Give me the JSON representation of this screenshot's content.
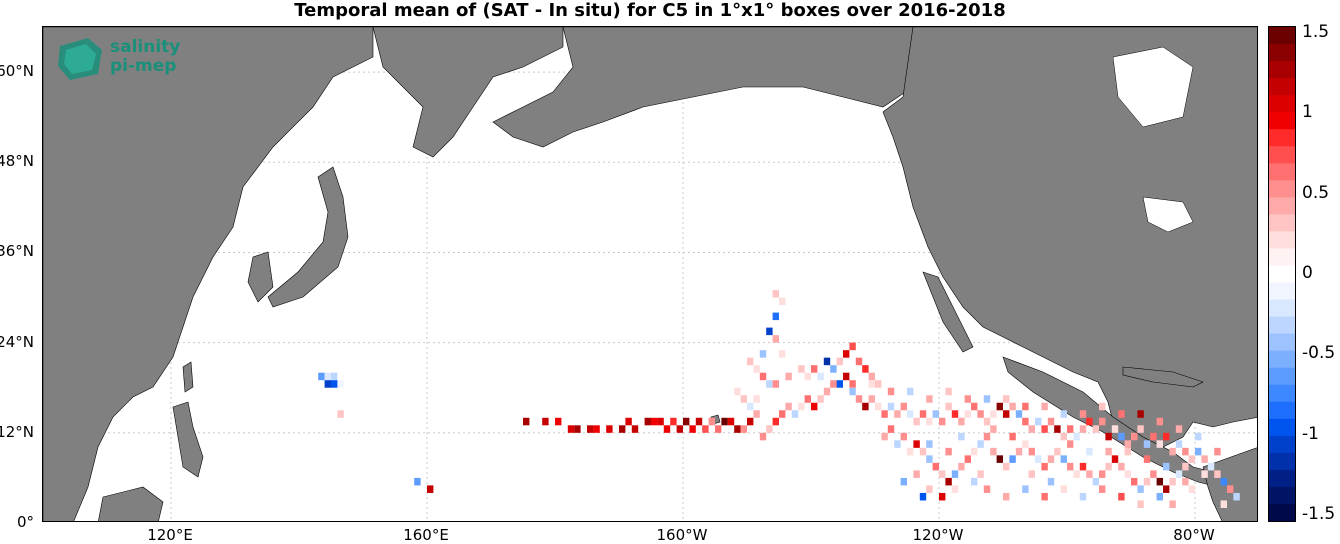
{
  "title": "Temporal mean of (SAT - In situ) for C5 in 1°x1° boxes over 2016-2018",
  "logo": {
    "line1": "salinity",
    "line2": "pi-mep"
  },
  "colors": {
    "land": "#808080",
    "ocean": "#ffffff",
    "grid": "#c8c8c8",
    "logo": "#1a8f7a"
  },
  "y_ticks": [
    {
      "value": 0,
      "label": "0°"
    },
    {
      "value": 12,
      "label": "12°N"
    },
    {
      "value": 24,
      "label": "24°N"
    },
    {
      "value": 36,
      "label": "36°N"
    },
    {
      "value": 48,
      "label": "48°N"
    },
    {
      "value": 60,
      "label": "60°N"
    }
  ],
  "x_ticks": [
    {
      "value": 120,
      "label": "120°E"
    },
    {
      "value": 160,
      "label": "160°E"
    },
    {
      "value": 200,
      "label": "160°W"
    },
    {
      "value": 240,
      "label": "120°W"
    },
    {
      "value": 280,
      "label": "80°W"
    }
  ],
  "colorbar": {
    "min": -1.5,
    "max": 1.5,
    "ticks": [
      {
        "value": 1.5,
        "label": "1.5"
      },
      {
        "value": 1,
        "label": "1"
      },
      {
        "value": 0.5,
        "label": "0.5"
      },
      {
        "value": 0,
        "label": "0"
      },
      {
        "value": -0.5,
        "label": "-0.5"
      },
      {
        "value": -1,
        "label": "-1"
      },
      {
        "value": -1.5,
        "label": "-1.5"
      }
    ],
    "colors_high_to_low": [
      "#6b0000",
      "#8b0000",
      "#a80000",
      "#c40000",
      "#dd0000",
      "#f00000",
      "#ff2a2a",
      "#ff4f4f",
      "#ff7070",
      "#ff8e8e",
      "#ffaaaa",
      "#ffc4c4",
      "#ffdede",
      "#fff2f2",
      "#ffffff",
      "#f0f5ff",
      "#d9e8ff",
      "#bcd6ff",
      "#9cc3ff",
      "#7cb0ff",
      "#5c9cff",
      "#3d87ff",
      "#1f6fff",
      "#0055ee",
      "#0041cc",
      "#0030aa",
      "#002088",
      "#001466",
      "#000a4a"
    ]
  },
  "chart_data": {
    "type": "heatmap",
    "title": "Temporal mean of (SAT - In situ) for C5 in 1°x1° boxes over 2016-2018",
    "xlabel": "",
    "ylabel": "",
    "xlim": [
      100,
      290
    ],
    "ylim": [
      0,
      66
    ],
    "grid": true,
    "colorbar_range": [
      -1.5,
      1.5
    ],
    "cells": [
      [
        143,
        19,
        -0.6
      ],
      [
        144,
        19,
        -0.2
      ],
      [
        145,
        19,
        -0.3
      ],
      [
        146,
        18,
        -0.1
      ],
      [
        145,
        18,
        -0.9
      ],
      [
        144,
        18,
        -1.0
      ],
      [
        146,
        14,
        0.3
      ],
      [
        158,
        5,
        -0.6
      ],
      [
        160,
        4,
        1.1
      ],
      [
        175,
        13,
        1.2
      ],
      [
        178,
        13,
        1.1
      ],
      [
        180,
        13,
        0.9
      ],
      [
        182,
        12,
        1.0
      ],
      [
        183,
        12,
        1.2
      ],
      [
        185,
        12,
        1.1
      ],
      [
        186,
        12,
        0.9
      ],
      [
        188,
        12,
        1.0
      ],
      [
        190,
        12,
        1.2
      ],
      [
        191,
        13,
        1.0
      ],
      [
        192,
        12,
        1.1
      ],
      [
        194,
        13,
        1.2
      ],
      [
        195,
        13,
        0.9
      ],
      [
        196,
        13,
        1.0
      ],
      [
        197,
        12,
        0.9
      ],
      [
        198,
        13,
        0.8
      ],
      [
        199,
        12,
        1.1
      ],
      [
        200,
        13,
        1.3
      ],
      [
        201,
        12,
        0.9
      ],
      [
        202,
        13,
        1.1
      ],
      [
        203,
        12,
        0.7
      ],
      [
        204,
        13,
        0.5
      ],
      [
        205,
        12,
        0.6
      ],
      [
        206,
        13,
        1.4
      ],
      [
        207,
        13,
        1.0
      ],
      [
        208,
        12,
        1.2
      ],
      [
        209,
        12,
        0.5
      ],
      [
        210,
        13,
        1.1
      ],
      [
        211,
        14,
        0.4
      ],
      [
        214,
        30,
        0.3
      ],
      [
        215,
        29,
        0.2
      ],
      [
        214,
        27,
        -0.8
      ],
      [
        213,
        25,
        -1.0
      ],
      [
        214,
        24,
        0.4
      ],
      [
        212,
        22,
        -0.4
      ],
      [
        215,
        22,
        0.2
      ],
      [
        210,
        21,
        0.3
      ],
      [
        211,
        20,
        0.2
      ],
      [
        212,
        19,
        0.6
      ],
      [
        213,
        18,
        -0.3
      ],
      [
        214,
        18,
        0.5
      ],
      [
        216,
        19,
        0.4
      ],
      [
        218,
        20,
        0.3
      ],
      [
        219,
        19,
        0.2
      ],
      [
        220,
        20,
        0.6
      ],
      [
        221,
        19,
        -0.2
      ],
      [
        222,
        21,
        -1.1
      ],
      [
        223,
        20,
        -0.5
      ],
      [
        224,
        21,
        0.3
      ],
      [
        225,
        22,
        1.0
      ],
      [
        226,
        23,
        0.7
      ],
      [
        227,
        21,
        0.6
      ],
      [
        228,
        20,
        0.8
      ],
      [
        229,
        19,
        0.4
      ],
      [
        230,
        18,
        0.3
      ],
      [
        225,
        19,
        1.1
      ],
      [
        224,
        18,
        -0.9
      ],
      [
        223,
        18,
        0.5
      ],
      [
        222,
        17,
        0.4
      ],
      [
        221,
        16,
        0.3
      ],
      [
        220,
        15,
        0.9
      ],
      [
        219,
        16,
        0.6
      ],
      [
        218,
        15,
        0.2
      ],
      [
        217,
        14,
        -0.3
      ],
      [
        216,
        15,
        0.4
      ],
      [
        215,
        14,
        0.6
      ],
      [
        214,
        13,
        0.8
      ],
      [
        213,
        12,
        0.3
      ],
      [
        212,
        11,
        0.5
      ],
      [
        211,
        16,
        0.2
      ],
      [
        210,
        15,
        -0.2
      ],
      [
        209,
        16,
        0.3
      ],
      [
        208,
        17,
        0.2
      ],
      [
        227,
        16,
        0.5
      ],
      [
        228,
        15,
        1.2
      ],
      [
        229,
        16,
        0.4
      ],
      [
        230,
        15,
        0.2
      ],
      [
        231,
        14,
        0.6
      ],
      [
        232,
        15,
        -0.3
      ],
      [
        233,
        14,
        0.4
      ],
      [
        234,
        15,
        0.5
      ],
      [
        235,
        14,
        -0.2
      ],
      [
        236,
        13,
        0.3
      ],
      [
        237,
        14,
        0.6
      ],
      [
        238,
        13,
        0.2
      ],
      [
        239,
        14,
        -0.4
      ],
      [
        240,
        13,
        0.5
      ],
      [
        241,
        15,
        0.3
      ],
      [
        242,
        14,
        0.8
      ],
      [
        243,
        13,
        0.4
      ],
      [
        244,
        14,
        0.2
      ],
      [
        245,
        15,
        0.6
      ],
      [
        246,
        14,
        0.5
      ],
      [
        247,
        13,
        0.3
      ],
      [
        248,
        14,
        0.2
      ],
      [
        249,
        15,
        1.3
      ],
      [
        250,
        14,
        1.1
      ],
      [
        251,
        15,
        0.4
      ],
      [
        252,
        14,
        -0.5
      ],
      [
        253,
        13,
        0.6
      ],
      [
        254,
        12,
        0.4
      ],
      [
        255,
        13,
        -0.3
      ],
      [
        256,
        12,
        0.7
      ],
      [
        257,
        13,
        0.5
      ],
      [
        258,
        12,
        1.2
      ],
      [
        259,
        11,
        0.3
      ],
      [
        260,
        12,
        0.6
      ],
      [
        261,
        11,
        -0.2
      ],
      [
        262,
        12,
        0.4
      ],
      [
        263,
        13,
        0.8
      ],
      [
        264,
        12,
        0.3
      ],
      [
        265,
        13,
        0.5
      ],
      [
        266,
        11,
        1.1
      ],
      [
        267,
        12,
        0.2
      ],
      [
        268,
        11,
        -0.6
      ],
      [
        269,
        10,
        0.4
      ],
      [
        270,
        11,
        0.5
      ],
      [
        271,
        12,
        0.3
      ],
      [
        272,
        10,
        -0.4
      ],
      [
        273,
        11,
        0.6
      ],
      [
        274,
        10,
        0.2
      ],
      [
        275,
        11,
        0.8
      ],
      [
        276,
        9,
        0.4
      ],
      [
        277,
        10,
        -0.3
      ],
      [
        278,
        9,
        0.5
      ],
      [
        279,
        8,
        0.3
      ],
      [
        280,
        9,
        -0.5
      ],
      [
        281,
        8,
        0.4
      ],
      [
        282,
        7,
        -0.2
      ],
      [
        283,
        6,
        0.3
      ],
      [
        284,
        5,
        -0.7
      ],
      [
        285,
        4,
        0.5
      ],
      [
        231,
        11,
        0.4
      ],
      [
        232,
        12,
        0.6
      ],
      [
        233,
        10,
        -0.3
      ],
      [
        234,
        11,
        0.5
      ],
      [
        235,
        9,
        0.2
      ],
      [
        236,
        10,
        1.0
      ],
      [
        237,
        9,
        0.3
      ],
      [
        238,
        8,
        -0.4
      ],
      [
        239,
        7,
        0.6
      ],
      [
        240,
        6,
        0.3
      ],
      [
        241,
        5,
        1.2
      ],
      [
        242,
        6,
        -0.5
      ],
      [
        243,
        7,
        0.4
      ],
      [
        244,
        8,
        0.6
      ],
      [
        245,
        9,
        0.2
      ],
      [
        246,
        10,
        -0.3
      ],
      [
        247,
        11,
        0.5
      ],
      [
        248,
        9,
        0.4
      ],
      [
        249,
        8,
        1.4
      ],
      [
        250,
        7,
        0.3
      ],
      [
        251,
        8,
        -0.6
      ],
      [
        252,
        9,
        0.4
      ],
      [
        253,
        10,
        0.2
      ],
      [
        254,
        9,
        0.5
      ],
      [
        255,
        8,
        -0.2
      ],
      [
        256,
        7,
        0.6
      ],
      [
        257,
        8,
        0.4
      ],
      [
        258,
        9,
        0.3
      ],
      [
        259,
        8,
        -0.5
      ],
      [
        260,
        7,
        0.5
      ],
      [
        261,
        6,
        0.2
      ],
      [
        262,
        7,
        0.8
      ],
      [
        263,
        6,
        0.4
      ],
      [
        264,
        5,
        -0.3
      ],
      [
        265,
        6,
        0.5
      ],
      [
        266,
        7,
        0.3
      ],
      [
        267,
        8,
        1.0
      ],
      [
        268,
        7,
        0.4
      ],
      [
        269,
        6,
        0.2
      ],
      [
        270,
        5,
        0.6
      ],
      [
        271,
        4,
        -0.4
      ],
      [
        272,
        5,
        0.3
      ],
      [
        273,
        6,
        0.5
      ],
      [
        274,
        5,
        1.4
      ],
      [
        275,
        4,
        1.2
      ],
      [
        276,
        5,
        0.3
      ],
      [
        277,
        6,
        -0.2
      ],
      [
        278,
        5,
        0.4
      ],
      [
        279,
        4,
        0.2
      ],
      [
        234,
        5,
        -0.5
      ],
      [
        237,
        3,
        -0.9
      ],
      [
        238,
        4,
        0.3
      ],
      [
        240,
        3,
        1.0
      ],
      [
        242,
        4,
        0.2
      ],
      [
        245,
        5,
        -0.3
      ],
      [
        247,
        4,
        0.5
      ],
      [
        250,
        3,
        0.4
      ],
      [
        253,
        4,
        -0.4
      ],
      [
        256,
        3,
        0.6
      ],
      [
        259,
        4,
        0.2
      ],
      [
        262,
        3,
        -0.3
      ],
      [
        265,
        4,
        0.5
      ],
      [
        268,
        3,
        0.7
      ],
      [
        271,
        2,
        0.3
      ],
      [
        274,
        3,
        -0.5
      ],
      [
        276,
        2,
        0.4
      ],
      [
        286,
        3,
        -0.3
      ],
      [
        284,
        2,
        0.2
      ],
      [
        236,
        6,
        0.4
      ],
      [
        238,
        10,
        -0.4
      ],
      [
        241,
        9,
        0.5
      ],
      [
        243,
        11,
        -0.3
      ],
      [
        246,
        6,
        0.3
      ],
      [
        248,
        12,
        0.4
      ],
      [
        251,
        11,
        0.6
      ],
      [
        254,
        6,
        0.3
      ],
      [
        257,
        5,
        -0.4
      ],
      [
        260,
        10,
        0.5
      ],
      [
        263,
        9,
        -0.2
      ],
      [
        266,
        9,
        0.4
      ],
      [
        269,
        9,
        0.3
      ],
      [
        272,
        8,
        0.6
      ],
      [
        275,
        7,
        -0.4
      ],
      [
        278,
        7,
        0.3
      ],
      [
        281,
        6,
        0.2
      ],
      [
        283,
        9,
        0.5
      ],
      [
        280,
        11,
        -0.3
      ],
      [
        277,
        12,
        0.4
      ],
      [
        274,
        13,
        0.5
      ],
      [
        271,
        14,
        1.2
      ],
      [
        268,
        14,
        0.6
      ],
      [
        265,
        15,
        0.3
      ],
      [
        262,
        14,
        0.5
      ],
      [
        259,
        14,
        -0.3
      ],
      [
        256,
        15,
        0.4
      ],
      [
        253,
        15,
        0.6
      ],
      [
        250,
        16,
        0.3
      ],
      [
        247,
        16,
        -0.4
      ],
      [
        244,
        16,
        0.5
      ],
      [
        241,
        17,
        0.3
      ],
      [
        238,
        16,
        0.4
      ],
      [
        235,
        17,
        -0.3
      ],
      [
        232,
        17,
        0.5
      ],
      [
        229,
        18,
        0.2
      ],
      [
        226,
        18,
        0.6
      ],
      [
        226,
        17,
        -0.4
      ]
    ]
  }
}
